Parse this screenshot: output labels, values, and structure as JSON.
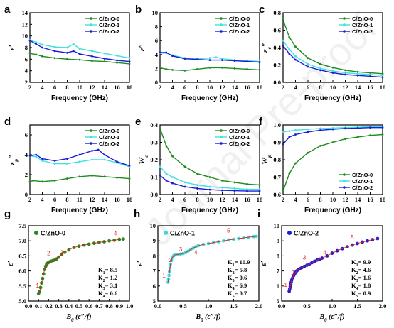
{
  "watermark": "Journal Pre-proof",
  "chart_data": [
    {
      "panel": "a",
      "type": "line",
      "xlabel": "Frequency (GHz)",
      "ylabel": "ε′",
      "xlim": [
        2,
        18
      ],
      "ylim": [
        2,
        14
      ],
      "xticks": [
        2,
        4,
        6,
        8,
        10,
        12,
        14,
        16,
        18
      ],
      "yticks": [
        2,
        4,
        6,
        8,
        10,
        12,
        14
      ],
      "legend_position": "top-right",
      "series": [
        {
          "name": "C/ZnO-0",
          "color": "#1e8c1e",
          "x": [
            2,
            3,
            4,
            6,
            8,
            10,
            12,
            14,
            16,
            18
          ],
          "y": [
            7.0,
            6.8,
            6.5,
            6.2,
            6.0,
            5.9,
            5.7,
            5.6,
            5.4,
            5.2
          ]
        },
        {
          "name": "C/ZnO-1",
          "color": "#3fe0e0",
          "x": [
            2,
            3,
            4,
            6,
            8,
            9,
            10,
            12,
            14,
            16,
            18
          ],
          "y": [
            9.3,
            8.9,
            8.5,
            8.1,
            8.0,
            8.6,
            7.8,
            7.4,
            7.0,
            6.6,
            6.2
          ]
        },
        {
          "name": "C/ZnO-2",
          "color": "#1c1cd6",
          "x": [
            2,
            3,
            4,
            6,
            8,
            9,
            10,
            12,
            14,
            16,
            18
          ],
          "y": [
            9.2,
            8.6,
            8.0,
            7.4,
            7.1,
            7.4,
            6.9,
            6.5,
            6.1,
            5.8,
            5.6
          ]
        }
      ]
    },
    {
      "panel": "b",
      "type": "line",
      "xlabel": "Frequency (GHz)",
      "ylabel": "ε″",
      "xlim": [
        2,
        18
      ],
      "ylim": [
        0,
        10
      ],
      "xticks": [
        2,
        4,
        6,
        8,
        10,
        12,
        14,
        16,
        18
      ],
      "yticks": [
        0,
        2,
        4,
        6,
        8,
        10
      ],
      "legend_position": "top-right",
      "series": [
        {
          "name": "C/ZnO-0",
          "color": "#1e8c1e",
          "x": [
            2,
            3,
            4,
            6,
            8,
            10,
            12,
            14,
            16,
            18
          ],
          "y": [
            2.1,
            1.9,
            1.8,
            1.7,
            1.9,
            2.1,
            2.1,
            2.0,
            1.9,
            1.8
          ]
        },
        {
          "name": "C/ZnO-1",
          "color": "#3fe0e0",
          "x": [
            2,
            3,
            4,
            6,
            8,
            10,
            11,
            12,
            14,
            16,
            18
          ],
          "y": [
            4.2,
            4.2,
            3.9,
            3.5,
            3.4,
            3.5,
            3.6,
            3.4,
            3.2,
            3.1,
            3.0
          ]
        },
        {
          "name": "C/ZnO-2",
          "color": "#1c1cd6",
          "x": [
            2,
            3,
            4,
            6,
            8,
            10,
            12,
            14,
            16,
            18
          ],
          "y": [
            4.3,
            4.3,
            3.8,
            3.4,
            3.3,
            3.2,
            3.2,
            3.1,
            3.0,
            2.9
          ]
        }
      ]
    },
    {
      "panel": "c",
      "type": "line",
      "xlabel": "Frequency (GHz)",
      "ylabel": "εc″",
      "xlim": [
        2,
        18
      ],
      "ylim": [
        0.0,
        0.8
      ],
      "xticks": [
        2,
        4,
        6,
        8,
        10,
        12,
        14,
        16,
        18
      ],
      "yticks": [
        0.0,
        0.2,
        0.4,
        0.6,
        0.8
      ],
      "legend_position": "top-right",
      "series": [
        {
          "name": "C/ZnO-0",
          "color": "#1e8c1e",
          "x": [
            2,
            3,
            4,
            6,
            8,
            10,
            12,
            14,
            16,
            18
          ],
          "y": [
            0.72,
            0.52,
            0.41,
            0.28,
            0.21,
            0.17,
            0.14,
            0.12,
            0.11,
            0.1
          ]
        },
        {
          "name": "C/ZnO-1",
          "color": "#3fe0e0",
          "x": [
            2,
            3,
            4,
            6,
            8,
            10,
            12,
            14,
            16,
            18
          ],
          "y": [
            0.48,
            0.38,
            0.3,
            0.21,
            0.16,
            0.13,
            0.11,
            0.1,
            0.09,
            0.08
          ]
        },
        {
          "name": "C/ZnO-2",
          "color": "#1c1cd6",
          "x": [
            2,
            3,
            4,
            6,
            8,
            10,
            12,
            14,
            16,
            18
          ],
          "y": [
            0.42,
            0.33,
            0.26,
            0.18,
            0.14,
            0.11,
            0.09,
            0.08,
            0.07,
            0.06
          ]
        }
      ]
    },
    {
      "panel": "d",
      "type": "line",
      "xlabel": "Frequency (GHz)",
      "ylabel": "εp″",
      "xlim": [
        2,
        18
      ],
      "ylim": [
        0,
        7
      ],
      "xticks": [
        2,
        4,
        6,
        8,
        10,
        12,
        14,
        16,
        18
      ],
      "yticks": [
        0,
        2,
        4,
        6
      ],
      "legend_position": "top-right",
      "series": [
        {
          "name": "C/ZnO-0",
          "color": "#1e8c1e",
          "x": [
            2,
            2.5,
            4,
            6,
            8,
            10,
            12,
            14,
            16,
            18
          ],
          "y": [
            1.3,
            1.4,
            1.3,
            1.4,
            1.6,
            1.8,
            1.9,
            1.8,
            1.7,
            1.6
          ]
        },
        {
          "name": "C/ZnO-1",
          "color": "#3fe0e0",
          "x": [
            2,
            3,
            4,
            6,
            8,
            10,
            12,
            14,
            16,
            18
          ],
          "y": [
            3.9,
            3.8,
            3.4,
            3.1,
            3.1,
            3.3,
            3.5,
            3.5,
            3.2,
            2.8
          ]
        },
        {
          "name": "C/ZnO-2",
          "color": "#1c1cd6",
          "x": [
            2,
            3,
            4,
            6,
            8,
            10,
            12,
            13,
            14,
            16,
            18
          ],
          "y": [
            3.9,
            4.0,
            3.6,
            3.4,
            3.6,
            4.0,
            4.4,
            4.5,
            4.0,
            3.3,
            2.9
          ]
        }
      ]
    },
    {
      "panel": "e",
      "type": "line",
      "xlabel": "Frequency (GHz)",
      "ylabel": "Wc",
      "xlim": [
        2,
        18
      ],
      "ylim": [
        0.0,
        0.4
      ],
      "xticks": [
        2,
        4,
        6,
        8,
        10,
        12,
        14,
        16,
        18
      ],
      "yticks": [
        0.0,
        0.1,
        0.2,
        0.3,
        0.4
      ],
      "legend_position": "top-right",
      "series": [
        {
          "name": "C/ZnO-0",
          "color": "#1e8c1e",
          "x": [
            2,
            3,
            4,
            6,
            8,
            10,
            12,
            14,
            16,
            18
          ],
          "y": [
            0.38,
            0.28,
            0.22,
            0.16,
            0.12,
            0.1,
            0.08,
            0.07,
            0.06,
            0.055
          ]
        },
        {
          "name": "C/ZnO-1",
          "color": "#3fe0e0",
          "x": [
            2,
            3,
            4,
            6,
            8,
            10,
            12,
            14,
            16,
            18
          ],
          "y": [
            0.16,
            0.12,
            0.1,
            0.07,
            0.055,
            0.045,
            0.04,
            0.035,
            0.03,
            0.03
          ]
        },
        {
          "name": "C/ZnO-2",
          "color": "#1c1cd6",
          "x": [
            2,
            3,
            4,
            6,
            8,
            10,
            12,
            14,
            16,
            18
          ],
          "y": [
            0.11,
            0.08,
            0.065,
            0.045,
            0.035,
            0.028,
            0.024,
            0.022,
            0.02,
            0.02
          ]
        }
      ]
    },
    {
      "panel": "f",
      "type": "line",
      "xlabel": "Frequency (GHz)",
      "ylabel": "Wp",
      "xlim": [
        2,
        18
      ],
      "ylim": [
        0.6,
        1.0
      ],
      "xticks": [
        2,
        4,
        6,
        8,
        10,
        12,
        14,
        16,
        18
      ],
      "yticks": [
        0.6,
        0.7,
        0.8,
        0.9,
        1.0
      ],
      "legend_position": "bottom-right",
      "series": [
        {
          "name": "C/ZnO-0",
          "color": "#1e8c1e",
          "x": [
            2,
            3,
            4,
            6,
            8,
            10,
            12,
            14,
            16,
            18
          ],
          "y": [
            0.62,
            0.72,
            0.78,
            0.84,
            0.88,
            0.9,
            0.92,
            0.93,
            0.94,
            0.945
          ]
        },
        {
          "name": "C/ZnO-1",
          "color": "#3fe0e0",
          "x": [
            2,
            3,
            4,
            6,
            8,
            10,
            12,
            14,
            16,
            18
          ],
          "y": [
            0.96,
            0.965,
            0.97,
            0.975,
            0.98,
            0.982,
            0.985,
            0.987,
            0.99,
            0.99
          ]
        },
        {
          "name": "C/ZnO-2",
          "color": "#1c1cd6",
          "x": [
            2,
            3,
            4,
            6,
            8,
            10,
            12,
            14,
            16,
            18
          ],
          "y": [
            0.89,
            0.93,
            0.945,
            0.96,
            0.97,
            0.975,
            0.98,
            0.982,
            0.985,
            0.985
          ]
        }
      ]
    },
    {
      "panel": "g",
      "type": "scatter",
      "xlabel": "B0 (ε″/f)",
      "ylabel": "ε′",
      "xlim": [
        0.0,
        1.0
      ],
      "ylim": [
        5.0,
        7.5
      ],
      "xticks": [
        0.0,
        0.1,
        0.2,
        0.3,
        0.4,
        0.5,
        0.6,
        0.7,
        0.8,
        0.9,
        1.0
      ],
      "yticks": [
        5.0,
        5.5,
        6.0,
        6.5,
        7.0,
        7.5
      ],
      "legend_position": "top-left",
      "series": [
        {
          "name": "C/ZnO-0",
          "color": "#1e8c1e",
          "x": [
            0.1,
            0.11,
            0.12,
            0.13,
            0.14,
            0.15,
            0.16,
            0.17,
            0.18,
            0.19,
            0.2,
            0.21,
            0.22,
            0.24,
            0.26,
            0.28,
            0.3,
            0.33,
            0.36,
            0.4,
            0.45,
            0.5,
            0.55,
            0.6,
            0.65,
            0.7,
            0.75,
            0.8,
            0.85,
            0.9,
            0.94
          ],
          "y": [
            5.25,
            5.32,
            5.45,
            5.6,
            5.75,
            5.9,
            6.05,
            6.15,
            6.22,
            6.26,
            6.28,
            6.3,
            6.32,
            6.34,
            6.36,
            6.4,
            6.46,
            6.55,
            6.62,
            6.7,
            6.78,
            6.82,
            6.86,
            6.89,
            6.92,
            6.95,
            6.97,
            7.0,
            7.02,
            7.05,
            7.06
          ]
        }
      ],
      "segment_labels": [
        {
          "text": "1",
          "x": 0.09,
          "y": 5.45
        },
        {
          "text": "2",
          "x": 0.2,
          "y": 6.52
        },
        {
          "text": "3",
          "x": 0.33,
          "y": 6.55
        },
        {
          "text": "4",
          "x": 0.86,
          "y": 7.18
        }
      ],
      "k_values": [
        "K1= 8.5",
        "K2= 1.2",
        "K3= 3.1",
        "K4= 0.6"
      ]
    },
    {
      "panel": "h",
      "type": "scatter",
      "xlabel": "B0 (ε″/f)",
      "ylabel": "ε′",
      "xlim": [
        0.0,
        2.0
      ],
      "ylim": [
        5,
        10
      ],
      "xticks": [
        0.0,
        0.5,
        1.0,
        1.5,
        2.0
      ],
      "yticks": [
        5,
        6,
        7,
        8,
        9,
        10
      ],
      "legend_position": "top-left",
      "series": [
        {
          "name": "C/ZnO-1",
          "color": "#3fe0e0",
          "x": [
            0.2,
            0.21,
            0.22,
            0.23,
            0.24,
            0.25,
            0.27,
            0.29,
            0.31,
            0.33,
            0.36,
            0.4,
            0.45,
            0.5,
            0.55,
            0.6,
            0.65,
            0.7,
            0.75,
            0.8,
            0.9,
            1.0,
            1.1,
            1.2,
            1.3,
            1.4,
            1.5,
            1.6,
            1.7,
            1.8,
            1.9,
            1.95
          ],
          "y": [
            6.25,
            6.45,
            6.7,
            6.95,
            7.2,
            7.45,
            7.7,
            7.9,
            8.0,
            8.05,
            8.08,
            8.1,
            8.12,
            8.15,
            8.22,
            8.32,
            8.42,
            8.52,
            8.6,
            8.68,
            8.76,
            8.82,
            8.88,
            8.94,
            9.0,
            9.06,
            9.1,
            9.15,
            9.2,
            9.24,
            9.28,
            9.3
          ]
        }
      ],
      "segment_labels": [
        {
          "text": "1",
          "x": 0.12,
          "y": 6.55
        },
        {
          "text": "2",
          "x": 0.25,
          "y": 7.6
        },
        {
          "text": "3",
          "x": 0.45,
          "y": 8.3
        },
        {
          "text": "4",
          "x": 0.75,
          "y": 8.1
        },
        {
          "text": "5",
          "x": 1.4,
          "y": 9.55
        }
      ],
      "k_values": [
        "K1= 10.9",
        "K2= 5.8",
        "K3= 0.6",
        "K4= 6.9",
        "K5= 0.7"
      ]
    },
    {
      "panel": "i",
      "type": "scatter",
      "xlabel": "B0 (ε″/f)",
      "ylabel": "ε′",
      "xlim": [
        0.0,
        2.0
      ],
      "ylim": [
        5,
        10
      ],
      "xticks": [
        0.0,
        0.5,
        1.0,
        1.5,
        2.0
      ],
      "yticks": [
        5,
        6,
        7,
        8,
        9,
        10
      ],
      "legend_position": "top-left",
      "series": [
        {
          "name": "C/ZnO-2",
          "color": "#1c1cd6",
          "x": [
            0.15,
            0.16,
            0.17,
            0.18,
            0.19,
            0.2,
            0.22,
            0.24,
            0.26,
            0.28,
            0.3,
            0.33,
            0.36,
            0.4,
            0.45,
            0.5,
            0.55,
            0.6,
            0.65,
            0.7,
            0.75,
            0.8,
            0.9,
            1.0,
            1.1,
            1.2,
            1.3,
            1.4,
            1.5,
            1.6,
            1.7,
            1.8,
            1.9
          ],
          "y": [
            5.65,
            5.8,
            5.95,
            6.1,
            6.25,
            6.4,
            6.55,
            6.7,
            6.82,
            6.92,
            7.0,
            7.08,
            7.15,
            7.22,
            7.3,
            7.38,
            7.46,
            7.55,
            7.64,
            7.72,
            7.78,
            7.85,
            8.0,
            8.18,
            8.34,
            8.48,
            8.6,
            8.72,
            8.82,
            8.92,
            9.0,
            9.08,
            9.15
          ]
        }
      ],
      "segment_labels": [
        {
          "text": "1",
          "x": 0.08,
          "y": 5.95
        },
        {
          "text": "2",
          "x": 0.22,
          "y": 6.75
        },
        {
          "text": "3",
          "x": 0.45,
          "y": 7.75
        },
        {
          "text": "4",
          "x": 0.85,
          "y": 8.1
        },
        {
          "text": "5",
          "x": 1.4,
          "y": 9.1
        }
      ],
      "k_values": [
        "K1= 9.9",
        "K2= 4.6",
        "K3= 1.6",
        "K4= 1.8",
        "K5= 0.9"
      ]
    }
  ]
}
